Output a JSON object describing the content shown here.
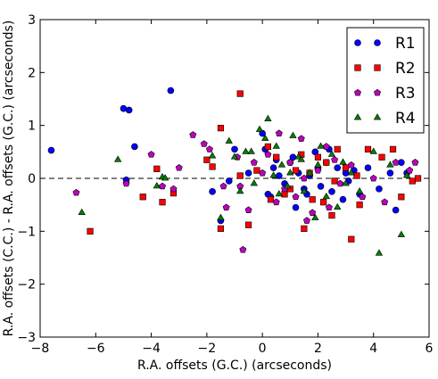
{
  "chart_data": {
    "type": "scatter",
    "xlabel": "R.A. offsets (G.C.) (arcseconds)",
    "ylabel": "R.A. offsets (C.C.) - R.A. offsets (G.C.) (arcseconds)",
    "xlim": [
      -8,
      6
    ],
    "ylim": [
      -3,
      3
    ],
    "xticks": [
      -8,
      -6,
      -4,
      -2,
      0,
      2,
      4,
      6
    ],
    "yticks": [
      -3,
      -2,
      -1,
      0,
      1,
      2,
      3
    ],
    "xtick_labels": [
      "−8",
      "−6",
      "−4",
      "−2",
      "0",
      "2",
      "4",
      "6"
    ],
    "ytick_labels": [
      "−3",
      "−2",
      "−1",
      "0",
      "1",
      "2",
      "3"
    ],
    "reference_line": {
      "y": 0,
      "style": "dashed"
    },
    "legend_position": "top-right",
    "grid": false,
    "series": [
      {
        "name": "R1",
        "marker": "circle",
        "color": "#0000ff",
        "points": [
          [
            -7.6,
            0.53
          ],
          [
            -5.0,
            1.32
          ],
          [
            -4.8,
            1.29
          ],
          [
            -3.3,
            1.66
          ],
          [
            -4.6,
            0.6
          ],
          [
            -4.9,
            -0.03
          ],
          [
            -1.0,
            0.55
          ],
          [
            -1.2,
            -0.05
          ],
          [
            -0.5,
            0.1
          ],
          [
            0.0,
            0.85
          ],
          [
            0.1,
            0.55
          ],
          [
            0.2,
            -0.3
          ],
          [
            0.4,
            0.2
          ],
          [
            0.6,
            0.05
          ],
          [
            0.8,
            -0.1
          ],
          [
            1.0,
            0.3
          ],
          [
            1.2,
            -0.55
          ],
          [
            1.3,
            0.1
          ],
          [
            1.5,
            -0.2
          ],
          [
            1.7,
            0.05
          ],
          [
            1.9,
            0.5
          ],
          [
            2.1,
            -0.15
          ],
          [
            2.3,
            0.3
          ],
          [
            2.5,
            -0.25
          ],
          [
            2.7,
            0.2
          ],
          [
            2.9,
            -0.4
          ],
          [
            3.1,
            -0.05
          ],
          [
            3.3,
            0.15
          ],
          [
            3.5,
            -0.3
          ],
          [
            3.8,
            0.2
          ],
          [
            4.2,
            -0.2
          ],
          [
            4.6,
            0.1
          ],
          [
            4.8,
            -0.6
          ],
          [
            5.0,
            0.3
          ],
          [
            5.2,
            0.1
          ],
          [
            -1.8,
            -0.25
          ],
          [
            -1.5,
            -0.8
          ],
          [
            0.3,
            -0.35
          ],
          [
            0.5,
            0.35
          ],
          [
            1.1,
            0.4
          ],
          [
            1.6,
            -0.3
          ],
          [
            2.0,
            0.2
          ],
          [
            2.4,
            0.55
          ],
          [
            3.0,
            0.1
          ]
        ]
      },
      {
        "name": "R2",
        "marker": "square",
        "color": "#ff0000",
        "points": [
          [
            -6.2,
            -1.0
          ],
          [
            -4.3,
            -0.35
          ],
          [
            -3.6,
            -0.45
          ],
          [
            -3.8,
            0.18
          ],
          [
            -3.2,
            -0.28
          ],
          [
            -0.8,
            1.6
          ],
          [
            -1.5,
            0.95
          ],
          [
            -2.0,
            0.35
          ],
          [
            -1.8,
            0.22
          ],
          [
            -1.5,
            -0.95
          ],
          [
            -0.8,
            0.05
          ],
          [
            -0.5,
            -0.88
          ],
          [
            0.2,
            0.6
          ],
          [
            0.5,
            0.4
          ],
          [
            0.8,
            -0.3
          ],
          [
            1.2,
            0.15
          ],
          [
            1.4,
            0.45
          ],
          [
            1.5,
            -0.95
          ],
          [
            1.8,
            -0.4
          ],
          [
            2.0,
            0.4
          ],
          [
            2.2,
            -0.45
          ],
          [
            2.5,
            -0.7
          ],
          [
            2.7,
            0.55
          ],
          [
            3.0,
            0.2
          ],
          [
            3.2,
            -1.15
          ],
          [
            3.5,
            -0.5
          ],
          [
            3.8,
            0.55
          ],
          [
            4.3,
            0.4
          ],
          [
            4.7,
            0.55
          ],
          [
            5.0,
            -0.35
          ],
          [
            5.4,
            -0.05
          ],
          [
            5.6,
            0.0
          ],
          [
            2.3,
            0.3
          ],
          [
            1.0,
            -0.2
          ],
          [
            0.3,
            -0.4
          ],
          [
            2.6,
            -0.05
          ],
          [
            1.7,
            0.1
          ],
          [
            -0.2,
            0.15
          ],
          [
            3.4,
            0.05
          ]
        ]
      },
      {
        "name": "R3",
        "marker": "pentagon",
        "color": "#bf00bf",
        "points": [
          [
            -6.7,
            -0.27
          ],
          [
            -4.9,
            -0.1
          ],
          [
            -4.0,
            0.45
          ],
          [
            -3.6,
            -0.15
          ],
          [
            -3.2,
            -0.2
          ],
          [
            -3.0,
            0.2
          ],
          [
            -2.5,
            0.82
          ],
          [
            -2.1,
            0.65
          ],
          [
            -1.9,
            0.55
          ],
          [
            -1.4,
            -0.15
          ],
          [
            -1.3,
            -0.55
          ],
          [
            -0.9,
            0.4
          ],
          [
            -0.8,
            -0.15
          ],
          [
            -0.7,
            -1.35
          ],
          [
            -0.5,
            -0.6
          ],
          [
            0.0,
            0.1
          ],
          [
            0.2,
            0.45
          ],
          [
            0.5,
            -0.45
          ],
          [
            0.6,
            0.85
          ],
          [
            1.0,
            0.3
          ],
          [
            1.2,
            -0.35
          ],
          [
            1.4,
            0.75
          ],
          [
            1.5,
            0.0
          ],
          [
            1.8,
            -0.65
          ],
          [
            2.0,
            0.15
          ],
          [
            2.3,
            0.6
          ],
          [
            2.4,
            -0.55
          ],
          [
            2.6,
            0.35
          ],
          [
            2.8,
            -0.1
          ],
          [
            3.2,
            0.25
          ],
          [
            3.6,
            -0.35
          ],
          [
            4.0,
            0.0
          ],
          [
            4.4,
            -0.45
          ],
          [
            4.8,
            0.3
          ],
          [
            5.3,
            0.15
          ],
          [
            5.5,
            0.3
          ],
          [
            1.6,
            -0.8
          ],
          [
            0.8,
            -0.2
          ],
          [
            -0.3,
            0.3
          ]
        ]
      },
      {
        "name": "R4",
        "marker": "triangle",
        "color": "#008000",
        "points": [
          [
            -6.5,
            -0.65
          ],
          [
            -5.2,
            0.35
          ],
          [
            -3.8,
            -0.15
          ],
          [
            -3.6,
            0.02
          ],
          [
            -3.5,
            0.0
          ],
          [
            -1.8,
            0.42
          ],
          [
            -1.5,
            -0.75
          ],
          [
            -1.2,
            0.7
          ],
          [
            -1.0,
            0.4
          ],
          [
            -0.8,
            -0.25
          ],
          [
            -0.6,
            0.5
          ],
          [
            -0.3,
            -0.1
          ],
          [
            -0.1,
            0.92
          ],
          [
            0.1,
            0.75
          ],
          [
            0.2,
            1.12
          ],
          [
            0.5,
            0.6
          ],
          [
            0.7,
            0.25
          ],
          [
            0.9,
            -0.15
          ],
          [
            1.1,
            0.8
          ],
          [
            1.3,
            0.4
          ],
          [
            1.5,
            -0.25
          ],
          [
            1.7,
            0.1
          ],
          [
            1.9,
            -0.75
          ],
          [
            2.1,
            0.6
          ],
          [
            2.3,
            -0.35
          ],
          [
            2.5,
            0.45
          ],
          [
            2.7,
            -0.55
          ],
          [
            2.9,
            0.3
          ],
          [
            3.2,
            0.1
          ],
          [
            3.5,
            -0.25
          ],
          [
            4.0,
            0.5
          ],
          [
            4.2,
            -1.42
          ],
          [
            4.6,
            0.25
          ],
          [
            5.0,
            -1.07
          ],
          [
            5.2,
            0.05
          ],
          [
            0.4,
            0.05
          ],
          [
            0.6,
            -0.3
          ],
          [
            1.0,
            0.1
          ],
          [
            2.0,
            0.25
          ],
          [
            3.0,
            -0.1
          ],
          [
            -0.4,
            0.5
          ],
          [
            1.4,
            0.35
          ]
        ]
      }
    ]
  }
}
